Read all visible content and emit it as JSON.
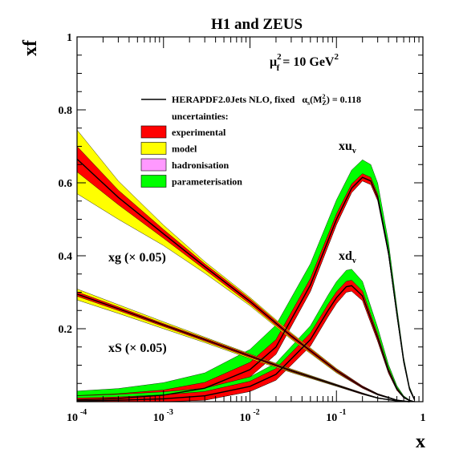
{
  "chart_data": {
    "type": "line",
    "title": "H1 and ZEUS",
    "ylabel": "xf",
    "xlabel": "x",
    "xscale": "log",
    "xlim": [
      0.0001,
      1
    ],
    "ylim": [
      0,
      1
    ],
    "grid": false,
    "legend_position": "top-center",
    "x_tick_labels": [
      "10",
      "10",
      "10",
      "10",
      "1"
    ],
    "x_tick_exponents": [
      "-4",
      "-3",
      "-2",
      "-1",
      ""
    ],
    "y_tick_labels": [
      "0.2",
      "0.4",
      "0.6",
      "0.8",
      "1"
    ],
    "y_tick_values": [
      0.2,
      0.4,
      0.6,
      0.8,
      1
    ],
    "scale_annotation": {
      "base": "μ",
      "sub": "f",
      "sup": "2",
      "eq": " = 10 GeV",
      "unit_sup": "2"
    },
    "legend": {
      "line_label": "HERAPDF2.0Jets NLO, fixed",
      "alpha": "α",
      "alpha_sub": "s",
      "alpha_arg_open": "(M",
      "alpha_arg_sup": "2",
      "alpha_arg_sub": "Z",
      "alpha_value": ") = 0.118",
      "uncertainties_title": "uncertainties:",
      "bands": [
        {
          "label": "experimental",
          "color": "#ff0000"
        },
        {
          "label": "model",
          "color": "#ffff00"
        },
        {
          "label": "hadronisation",
          "color": "#ff99ff"
        },
        {
          "label": "parameterisation",
          "color": "#00ff00"
        }
      ]
    },
    "line_color": "#000000",
    "series": [
      {
        "label_main": "xu",
        "label_sub": "v",
        "x": [
          0.0001,
          0.0003,
          0.001,
          0.003,
          0.01,
          0.02,
          0.05,
          0.1,
          0.15,
          0.2,
          0.25,
          0.3,
          0.4,
          0.5,
          0.6,
          0.7,
          0.8
        ],
        "y": [
          0.005,
          0.009,
          0.018,
          0.037,
          0.088,
          0.15,
          0.32,
          0.5,
          0.585,
          0.615,
          0.605,
          0.56,
          0.41,
          0.24,
          0.11,
          0.035,
          0.005
        ],
        "band_experimental": [
          0.012,
          0.013,
          0.014,
          0.016,
          0.02,
          0.02,
          0.018,
          0.015,
          0.012,
          0.01,
          0.01,
          0.009,
          0.008,
          0.006,
          0.004,
          0.003,
          0.002
        ],
        "band_parameterisation_upper": [
          0.012,
          0.014,
          0.02,
          0.026,
          0.035,
          0.04,
          0.04,
          0.038,
          0.038,
          0.038,
          0.035,
          0.03,
          0.02,
          0.013,
          0.007,
          0.003,
          0.001
        ]
      },
      {
        "label_main": "xd",
        "label_sub": "v",
        "x": [
          0.0001,
          0.0003,
          0.001,
          0.003,
          0.01,
          0.02,
          0.05,
          0.08,
          0.1,
          0.13,
          0.15,
          0.2,
          0.3,
          0.4,
          0.5,
          0.6,
          0.7,
          0.8
        ],
        "y": [
          0.002,
          0.004,
          0.008,
          0.016,
          0.042,
          0.075,
          0.17,
          0.25,
          0.285,
          0.315,
          0.318,
          0.29,
          0.175,
          0.085,
          0.035,
          0.012,
          0.003,
          0.0
        ],
        "band_experimental": [
          0.008,
          0.009,
          0.011,
          0.012,
          0.014,
          0.016,
          0.018,
          0.017,
          0.016,
          0.015,
          0.015,
          0.013,
          0.01,
          0.007,
          0.004,
          0.002,
          0.001,
          0.0
        ],
        "band_parameterisation_upper": [
          0.006,
          0.007,
          0.008,
          0.009,
          0.012,
          0.015,
          0.02,
          0.025,
          0.028,
          0.03,
          0.03,
          0.027,
          0.018,
          0.01,
          0.005,
          0.002,
          0.001,
          0.0
        ]
      },
      {
        "label_main": "xg (× 0.05)",
        "label_sub": "",
        "x": [
          0.0001,
          0.0003,
          0.001,
          0.003,
          0.01,
          0.03,
          0.1,
          0.2,
          0.3,
          0.5,
          0.7
        ],
        "y": [
          0.665,
          0.56,
          0.46,
          0.37,
          0.275,
          0.18,
          0.085,
          0.04,
          0.02,
          0.004,
          0.0
        ],
        "band_experimental": [
          0.035,
          0.02,
          0.012,
          0.008,
          0.007,
          0.006,
          0.004,
          0.003,
          0.002,
          0.001,
          0.0
        ],
        "band_model_lower": [
          0.06,
          0.04,
          0.02,
          0.01,
          0.005,
          0.003,
          0.002,
          0.0,
          0.0,
          0.0,
          0.0
        ],
        "band_model_upper": [
          0.045,
          0.025,
          0.012,
          0.006,
          0.004,
          0.003,
          0.002,
          0.0,
          0.0,
          0.0,
          0.0
        ]
      },
      {
        "label_main": "xS (× 0.05)",
        "label_sub": "",
        "x": [
          0.0001,
          0.0003,
          0.001,
          0.003,
          0.01,
          0.03,
          0.1,
          0.2,
          0.3,
          0.5,
          0.7
        ],
        "y": [
          0.295,
          0.255,
          0.21,
          0.17,
          0.125,
          0.085,
          0.045,
          0.022,
          0.01,
          0.002,
          0.0
        ],
        "band_experimental": [
          0.006,
          0.005,
          0.004,
          0.004,
          0.004,
          0.003,
          0.002,
          0.002,
          0.001,
          0.0,
          0.0
        ],
        "band_model_lower": [
          0.01,
          0.008,
          0.006,
          0.004,
          0.003,
          0.002,
          0.001,
          0.0,
          0.0,
          0.0,
          0.0
        ],
        "band_model_upper": [
          0.008,
          0.006,
          0.005,
          0.003,
          0.002,
          0.002,
          0.001,
          0.0,
          0.0,
          0.0,
          0.0
        ]
      }
    ]
  }
}
